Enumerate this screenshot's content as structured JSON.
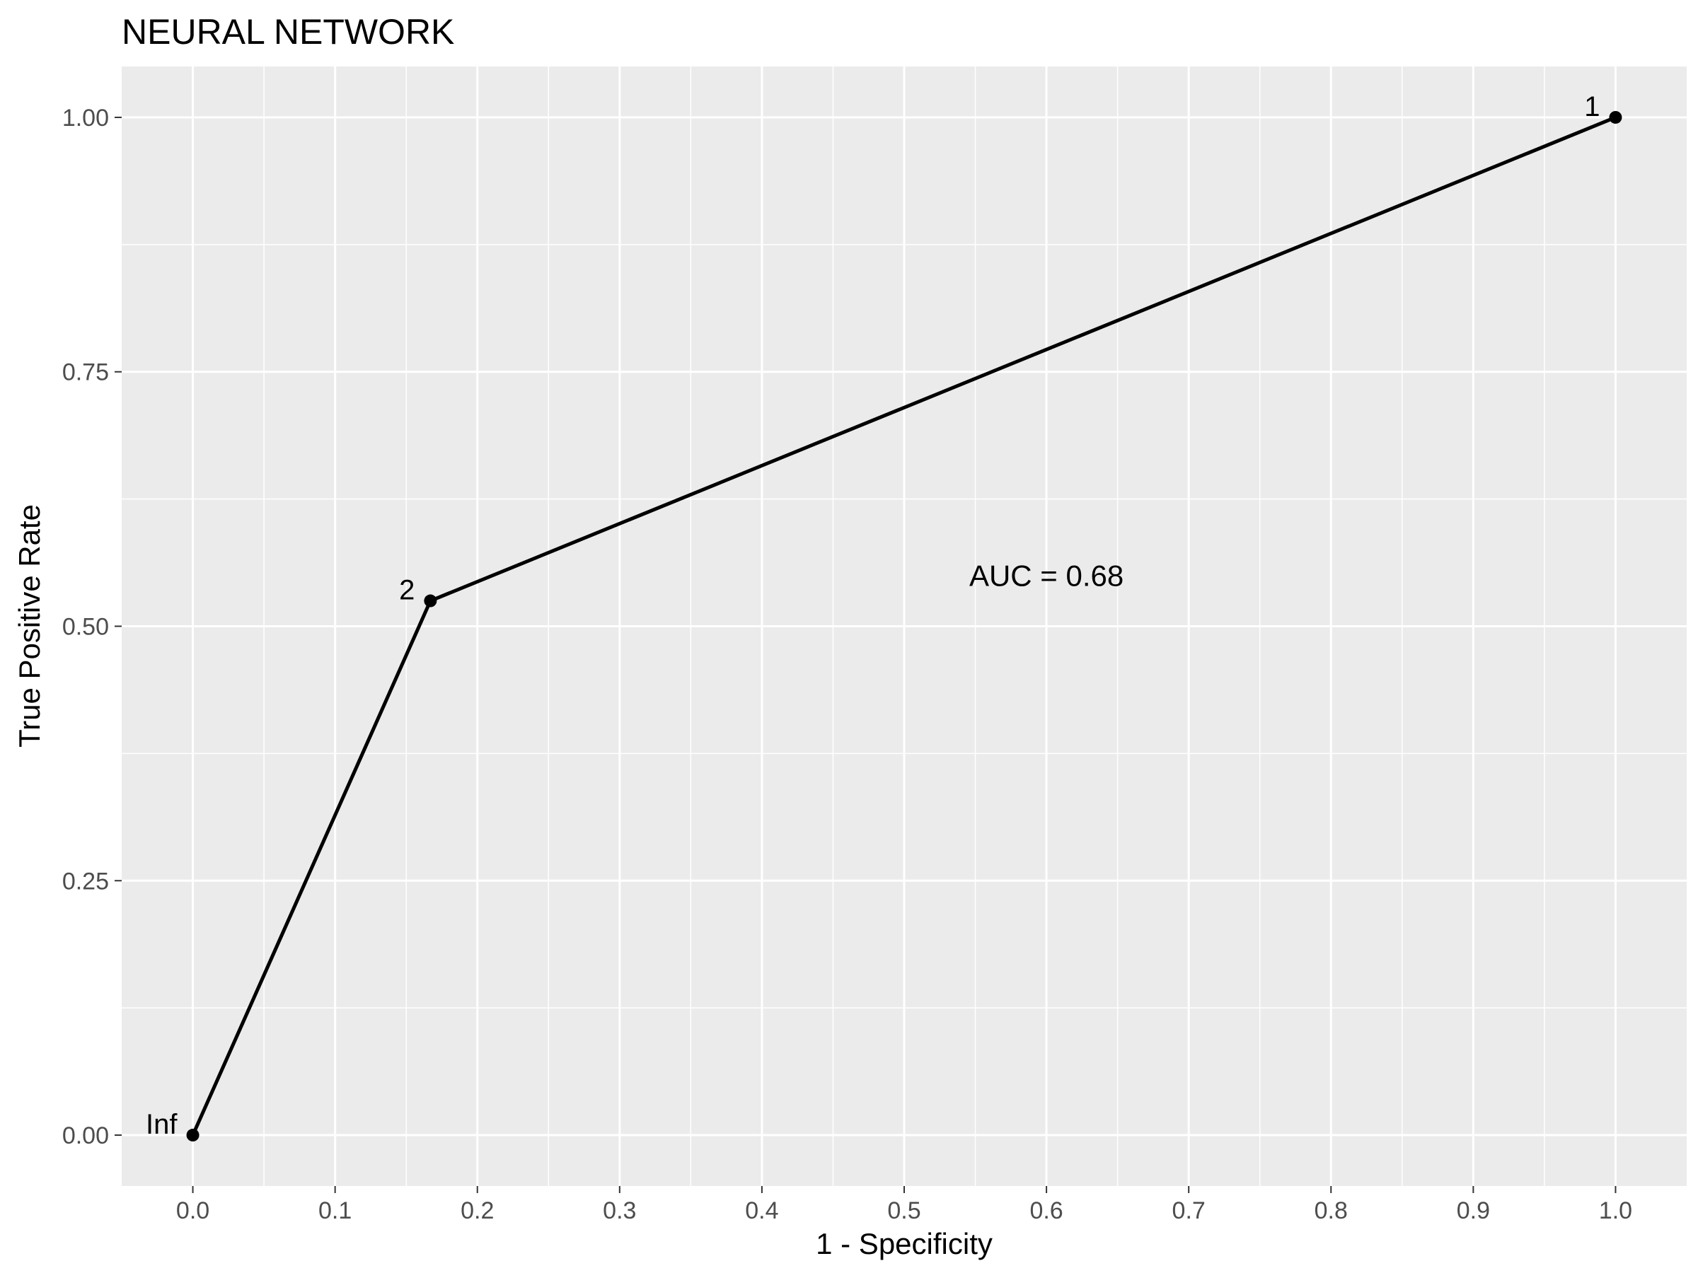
{
  "chart_data": {
    "type": "line",
    "title": "NEURAL NETWORK",
    "xlabel": "1 - Specificity",
    "ylabel": "True Positive Rate",
    "xlim": [
      -0.05,
      1.05
    ],
    "ylim": [
      -0.05,
      1.05
    ],
    "x_ticks": [
      0.0,
      0.1,
      0.2,
      0.3,
      0.4,
      0.5,
      0.6,
      0.7,
      0.8,
      0.9,
      1.0
    ],
    "x_tick_labels": [
      "0.0",
      "0.1",
      "0.2",
      "0.3",
      "0.4",
      "0.5",
      "0.6",
      "0.7",
      "0.8",
      "0.9",
      "1.0"
    ],
    "y_ticks": [
      0.0,
      0.25,
      0.5,
      0.75,
      1.0
    ],
    "y_tick_labels": [
      "0.00",
      "0.25",
      "0.50",
      "0.75",
      "1.00"
    ],
    "grid": true,
    "background_color": "#ebebeb",
    "line_color": "#000000",
    "series": [
      {
        "points": [
          {
            "x": 0.0,
            "y": 0.0,
            "label": "Inf"
          },
          {
            "x": 0.167,
            "y": 0.525,
            "label": "2"
          },
          {
            "x": 1.0,
            "y": 1.0,
            "label": "1"
          }
        ]
      }
    ],
    "annotations": [
      {
        "text": "AUC = 0.68",
        "x": 0.6,
        "y": 0.55
      }
    ]
  }
}
